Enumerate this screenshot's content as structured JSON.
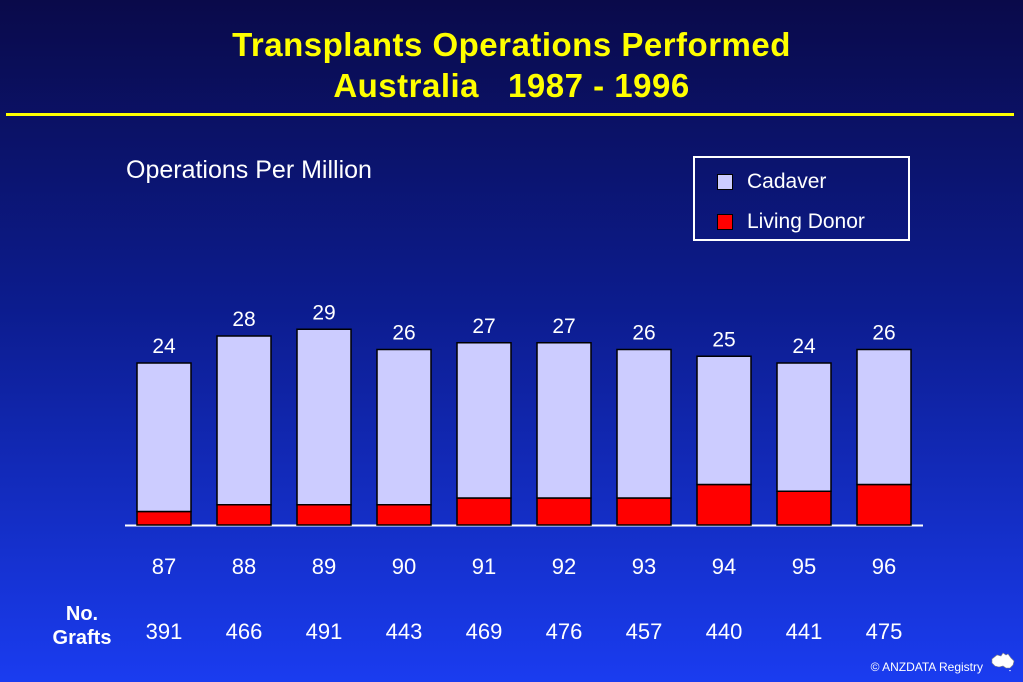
{
  "header": {
    "title_line1": "Transplants Operations Performed",
    "title_line2": "Australia   1987 - 1996"
  },
  "chart_data": {
    "type": "bar",
    "stacked": true,
    "title": "Operations Per Million",
    "categories": [
      "87",
      "88",
      "89",
      "90",
      "91",
      "92",
      "93",
      "94",
      "95",
      "96"
    ],
    "totals": [
      24,
      28,
      29,
      26,
      27,
      27,
      26,
      25,
      24,
      26
    ],
    "series": [
      {
        "name": "Living Donor",
        "color": "#ff0000",
        "values": [
          2,
          3,
          3,
          3,
          4,
          4,
          4,
          6,
          5,
          6
        ]
      },
      {
        "name": "Cadaver",
        "color": "#ccccff",
        "values": [
          22,
          25,
          26,
          23,
          23,
          23,
          22,
          19,
          19,
          20
        ]
      }
    ],
    "row_label": "No. Grafts",
    "row_label_lines": [
      "No.",
      "Grafts"
    ],
    "row_values": [
      "391",
      "466",
      "491",
      "443",
      "469",
      "476",
      "457",
      "440",
      "441",
      "475"
    ],
    "ylim": [
      0,
      32
    ],
    "grid": false,
    "legend_position": "top-right"
  },
  "footer": {
    "copyright": "© ANZDATA Registry"
  },
  "icons": {
    "logo": "australia-map-logo"
  }
}
